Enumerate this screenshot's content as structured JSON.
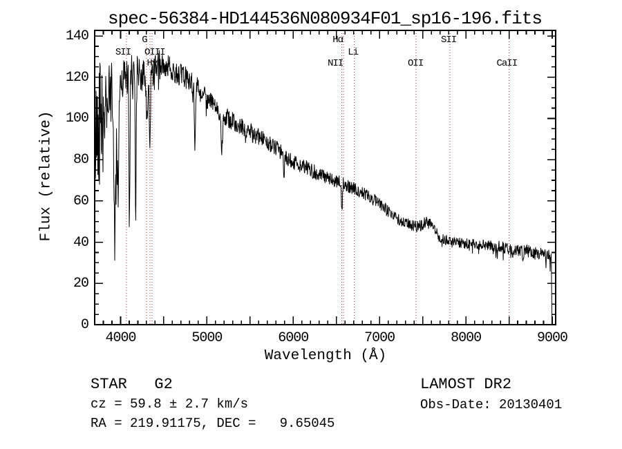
{
  "title": "spec-56384-HD144536N080934F01_sp16-196.fits",
  "chart_data": {
    "type": "line",
    "title": "spec-56384-HD144536N080934F01_sp16-196.fits",
    "xlabel": "Wavelength (Å)",
    "ylabel": "Flux (relative)",
    "xlim": [
      3700,
      9040
    ],
    "ylim": [
      0,
      142.7
    ],
    "grid": false,
    "legend": null,
    "background_color": "#ffffff",
    "line_color": "#000000",
    "marker_line_color": "#9e3a3a",
    "x_tick_labels": [
      4000,
      5000,
      6000,
      7000,
      8000,
      9000
    ],
    "x_major_tick_step": 500,
    "x_minor_tick_step": 100,
    "y_tick_labels": [
      0,
      20,
      40,
      60,
      80,
      100,
      120,
      140
    ],
    "y_major_tick_step": 20,
    "y_minor_tick_step": 5,
    "series": [
      {
        "name": "flux",
        "description": "LAMOST stellar spectrum (G2 star): noisy declining continuum, blue end very noisy, sharp drop to 0 at red cutoff",
        "sample_step_A": 4,
        "noise_seed": 42,
        "continuum_anchors": [
          [
            3700,
            85
          ],
          [
            3730,
            100
          ],
          [
            3770,
            103
          ],
          [
            3820,
            106
          ],
          [
            3870,
            110
          ],
          [
            3920,
            114
          ],
          [
            3960,
            116
          ],
          [
            4000,
            119
          ],
          [
            4080,
            121
          ],
          [
            4160,
            122
          ],
          [
            4240,
            121
          ],
          [
            4320,
            121
          ],
          [
            4400,
            124
          ],
          [
            4480,
            126
          ],
          [
            4560,
            125
          ],
          [
            4650,
            122
          ],
          [
            4750,
            120
          ],
          [
            4850,
            117
          ],
          [
            4950,
            112
          ],
          [
            5050,
            108
          ],
          [
            5150,
            103
          ],
          [
            5250,
            100
          ],
          [
            5350,
            97
          ],
          [
            5450,
            95
          ],
          [
            5550,
            92
          ],
          [
            5650,
            90
          ],
          [
            5750,
            87
          ],
          [
            5850,
            84
          ],
          [
            5950,
            80
          ],
          [
            6050,
            78
          ],
          [
            6150,
            76
          ],
          [
            6250,
            74
          ],
          [
            6350,
            72
          ],
          [
            6450,
            70
          ],
          [
            6550,
            69
          ],
          [
            6650,
            67
          ],
          [
            6750,
            65
          ],
          [
            6850,
            63
          ],
          [
            6950,
            60
          ],
          [
            7050,
            57
          ],
          [
            7150,
            53
          ],
          [
            7250,
            50
          ],
          [
            7350,
            48.5
          ],
          [
            7450,
            47.5
          ],
          [
            7550,
            50
          ],
          [
            7620,
            47
          ],
          [
            7680,
            43
          ],
          [
            7750,
            41.5
          ],
          [
            7850,
            40
          ],
          [
            7950,
            39.5
          ],
          [
            8100,
            39
          ],
          [
            8250,
            38.5
          ],
          [
            8400,
            37.5
          ],
          [
            8550,
            36.5
          ],
          [
            8700,
            36
          ],
          [
            8850,
            34.5
          ],
          [
            8990,
            33
          ]
        ],
        "absorption_features": [
          {
            "name": "CaII K",
            "center": 3933,
            "sigma": 11,
            "depth": 72
          },
          {
            "name": "CaII H",
            "center": 3969,
            "sigma": 9,
            "depth": 55
          },
          {
            "name": "H-delta",
            "center": 4102,
            "sigma": 6,
            "depth": 75
          },
          {
            "name": "blend 4175",
            "center": 4175,
            "sigma": 5,
            "depth": 68
          },
          {
            "name": "G band",
            "center": 4305,
            "sigma": 12,
            "depth": 20
          },
          {
            "name": "H-gamma",
            "center": 4340,
            "sigma": 6,
            "depth": 38
          },
          {
            "name": "H-beta",
            "center": 4861,
            "sigma": 6,
            "depth": 34
          },
          {
            "name": "Mg b",
            "center": 5172,
            "sigma": 8,
            "depth": 18
          },
          {
            "name": "Na D",
            "center": 5893,
            "sigma": 7,
            "depth": 9
          },
          {
            "name": "H-alpha",
            "center": 6563,
            "sigma": 6,
            "depth": 15
          },
          {
            "name": "CaII 8542",
            "center": 8542,
            "sigma": 7,
            "depth": 4
          },
          {
            "name": "CaII 8662",
            "center": 8662,
            "sigma": 7,
            "depth": 3
          }
        ],
        "noise_zones": [
          {
            "from": 3700,
            "to": 3745,
            "amp": 28,
            "spike_prob": 0.15,
            "spike_amp": 30
          },
          {
            "from": 3745,
            "to": 3800,
            "amp": 36,
            "spike_prob": 0.15,
            "spike_amp": 30
          },
          {
            "from": 3800,
            "to": 3905,
            "amp": 16,
            "spike_prob": 0.1,
            "spike_amp": 18
          },
          {
            "from": 3905,
            "to": 4010,
            "amp": 12,
            "spike_prob": 0.08,
            "spike_amp": 25
          },
          {
            "from": 4010,
            "to": 4210,
            "amp": 10,
            "spike_prob": 0.06,
            "spike_amp": 18
          },
          {
            "from": 4210,
            "to": 4460,
            "amp": 8,
            "spike_prob": 0.05,
            "spike_amp": 12
          },
          {
            "from": 4460,
            "to": 5010,
            "amp": 5.5,
            "spike_prob": 0.04,
            "spike_amp": 8
          },
          {
            "from": 5010,
            "to": 5610,
            "amp": 4.5,
            "spike_prob": 0.03,
            "spike_amp": 6
          },
          {
            "from": 5610,
            "to": 6310,
            "amp": 3.8,
            "spike_prob": 0.03,
            "spike_amp": 5
          },
          {
            "from": 6310,
            "to": 7010,
            "amp": 3.2,
            "spike_prob": 0.02,
            "spike_amp": 5
          },
          {
            "from": 7010,
            "to": 7710,
            "amp": 2.8,
            "spike_prob": 0.03,
            "spike_amp": 4
          },
          {
            "from": 7710,
            "to": 8310,
            "amp": 2.6,
            "spike_prob": 0.04,
            "spike_amp": 4
          },
          {
            "from": 8310,
            "to": 8991,
            "amp": 3.0,
            "spike_prob": 0.07,
            "spike_amp": 7
          }
        ],
        "red_cutoff": {
          "start": 8990,
          "end": 8998,
          "drop_to": 0
        },
        "clip_flux_max": 142.5
      }
    ],
    "spectral_line_markers": [
      {
        "label": "SII",
        "wavelength": 4068,
        "row": 2,
        "dx": -5
      },
      {
        "label": "G",
        "wavelength": 4300,
        "row": 1,
        "dx": -3
      },
      {
        "label": "Hγ",
        "wavelength": 4340,
        "row": 3,
        "dx": 3
      },
      {
        "label": "OIII",
        "wavelength": 4363,
        "row": 2,
        "dx": 4
      },
      {
        "label": "Hα",
        "wavelength": 6563,
        "row": 1,
        "dx": -6
      },
      {
        "label": "NII",
        "wavelength": 6584,
        "row": 3,
        "dx": -12
      },
      {
        "label": "Li",
        "wavelength": 6708,
        "row": 2,
        "dx": -2
      },
      {
        "label": "OII",
        "wavelength": 7424,
        "row": 3,
        "dx": -1
      },
      {
        "label": "SII",
        "wavelength": 7816,
        "row": 1,
        "dx": -2
      },
      {
        "label": "CaII",
        "wavelength": 8498,
        "row": 3,
        "dx": -3
      }
    ]
  },
  "footer": {
    "left": [
      "STAR   G2",
      "cz = 59.8 ± 2.7 km/s",
      "RA = 219.91175, DEC =   9.65045"
    ],
    "right": [
      "LAMOST DR2",
      "Obs-Date: 20130401"
    ]
  }
}
